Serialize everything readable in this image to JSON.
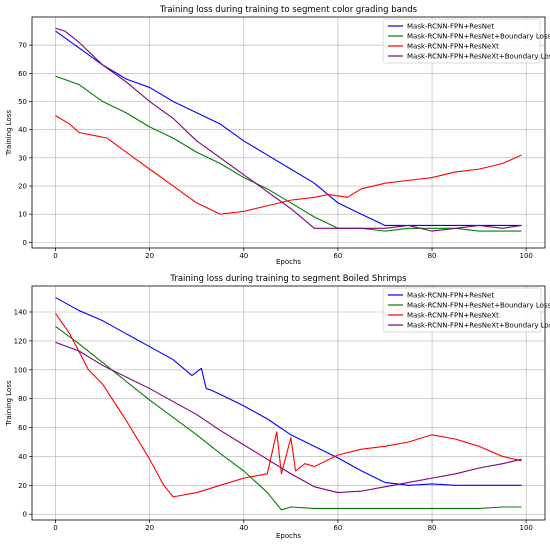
{
  "chart_data": [
    {
      "type": "line",
      "title": "Training loss during training to segment color grading bands",
      "xlabel": "Epochs",
      "ylabel": "Training Loss",
      "xlim": [
        -5,
        104
      ],
      "ylim": [
        -2,
        80
      ],
      "xticks": [
        0,
        20,
        40,
        60,
        80,
        100
      ],
      "yticks": [
        0,
        10,
        20,
        30,
        40,
        50,
        60,
        70
      ],
      "grid": true,
      "legend_position": "top-right",
      "series": [
        {
          "name": "Mask-RCNN-FPN+ResNet",
          "color": "#0000ff",
          "x": [
            0,
            5,
            10,
            15,
            20,
            25,
            30,
            35,
            40,
            45,
            50,
            55,
            60,
            65,
            70,
            75,
            80,
            85,
            90,
            95,
            99
          ],
          "y": [
            75,
            69,
            63,
            58,
            55,
            50,
            46,
            42,
            36,
            31,
            26,
            21,
            14,
            10,
            6,
            6,
            6,
            6,
            6,
            6,
            6
          ]
        },
        {
          "name": "Mask-RCNN-FPN+ResNet+Boundary Loss",
          "color": "#008000",
          "x": [
            0,
            5,
            10,
            15,
            20,
            25,
            30,
            35,
            40,
            45,
            50,
            55,
            60,
            65,
            70,
            75,
            80,
            85,
            90,
            95,
            99
          ],
          "y": [
            59,
            56,
            50,
            46,
            41,
            37,
            32,
            28,
            23,
            19,
            14,
            9,
            5,
            5,
            4,
            5,
            5,
            5,
            4,
            4,
            4
          ]
        },
        {
          "name": "Mask-RCNN-FPN+ResNeXt",
          "color": "#ff0000",
          "x": [
            0,
            3,
            5,
            8,
            11,
            15,
            20,
            25,
            30,
            35,
            40,
            45,
            50,
            55,
            58,
            62,
            65,
            70,
            75,
            80,
            85,
            90,
            95,
            99
          ],
          "y": [
            45,
            42,
            39,
            38,
            37,
            32,
            26,
            20,
            14,
            10,
            11,
            13,
            15,
            16,
            17,
            16,
            19,
            21,
            22,
            23,
            25,
            26,
            28,
            31
          ]
        },
        {
          "name": "Mask-RCNN-FPN+ResNeXt+Boundary Loss",
          "color": "#800080",
          "x": [
            0,
            2,
            5,
            10,
            15,
            20,
            25,
            30,
            35,
            40,
            45,
            50,
            55,
            60,
            65,
            70,
            75,
            80,
            85,
            90,
            95,
            99
          ],
          "y": [
            76,
            75,
            71,
            63,
            57,
            50,
            44,
            36,
            30,
            24,
            18,
            12,
            5,
            5,
            5,
            5,
            6,
            4,
            5,
            6,
            5,
            6
          ]
        }
      ]
    },
    {
      "type": "line",
      "title": "Training loss during training to segment Boiled Shrimps",
      "xlabel": "Epochs",
      "ylabel": "Training Loss",
      "xlim": [
        -5,
        104
      ],
      "ylim": [
        -4,
        158
      ],
      "xticks": [
        0,
        20,
        40,
        60,
        80,
        100
      ],
      "yticks": [
        0,
        20,
        40,
        60,
        80,
        100,
        120,
        140
      ],
      "grid": true,
      "legend_position": "top-right",
      "series": [
        {
          "name": "Mask-RCNN-FPN+ResNet",
          "color": "#0000ff",
          "x": [
            0,
            5,
            10,
            15,
            20,
            25,
            29,
            31,
            32,
            33,
            35,
            40,
            45,
            50,
            55,
            60,
            65,
            70,
            75,
            80,
            85,
            90,
            95,
            99
          ],
          "y": [
            150,
            141,
            134,
            125,
            116,
            107,
            96,
            101,
            87,
            86,
            83,
            75,
            66,
            55,
            47,
            39,
            30,
            22,
            20,
            21,
            20,
            20,
            20,
            20
          ]
        },
        {
          "name": "Mask-RCNN-FPN+ResNet+Boundary Loss",
          "color": "#008000",
          "x": [
            0,
            5,
            10,
            15,
            20,
            25,
            30,
            35,
            40,
            45,
            48,
            50,
            55,
            60,
            65,
            70,
            75,
            80,
            85,
            90,
            95,
            99
          ],
          "y": [
            130,
            118,
            105,
            92,
            79,
            67,
            55,
            42,
            30,
            15,
            3,
            5,
            4,
            4,
            4,
            4,
            4,
            4,
            4,
            4,
            5,
            5
          ]
        },
        {
          "name": "Mask-RCNN-FPN+ResNeXt",
          "color": "#ff0000",
          "x": [
            0,
            3,
            7,
            10,
            15,
            20,
            23,
            25,
            30,
            35,
            40,
            45,
            47,
            48,
            50,
            51,
            53,
            55,
            60,
            65,
            70,
            75,
            80,
            85,
            90,
            95,
            99
          ],
          "y": [
            139,
            125,
            100,
            90,
            65,
            38,
            20,
            12,
            15,
            20,
            25,
            28,
            57,
            28,
            53,
            30,
            35,
            33,
            41,
            45,
            47,
            50,
            55,
            52,
            47,
            40,
            37
          ]
        },
        {
          "name": "Mask-RCNN-FPN+ResNeXt+Boundary Loss",
          "color": "#800080",
          "x": [
            0,
            5,
            10,
            15,
            20,
            25,
            30,
            35,
            40,
            45,
            50,
            55,
            60,
            65,
            70,
            75,
            80,
            85,
            90,
            95,
            99
          ],
          "y": [
            119,
            113,
            103,
            95,
            87,
            78,
            69,
            58,
            48,
            38,
            28,
            19,
            15,
            16,
            19,
            22,
            25,
            28,
            32,
            35,
            38
          ]
        }
      ]
    }
  ]
}
